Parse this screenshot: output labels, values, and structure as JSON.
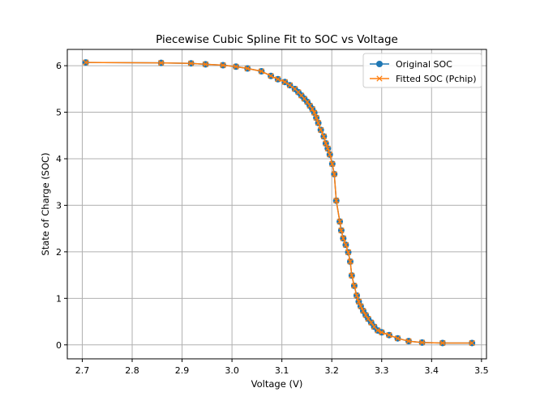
{
  "chart_data": {
    "type": "line",
    "title": "Piecewise Cubic Spline Fit to SOC vs Voltage",
    "xlabel": "Voltage (V)",
    "ylabel": "State of Charge (SOC)",
    "xlim": [
      2.67,
      3.51
    ],
    "ylim": [
      -0.3,
      6.35
    ],
    "xticks": [
      2.7,
      2.8,
      2.9,
      3.0,
      3.1,
      3.2,
      3.3,
      3.4,
      3.5
    ],
    "xtick_labels": [
      "2.7",
      "2.8",
      "2.9",
      "3.0",
      "3.1",
      "3.2",
      "3.3",
      "3.4",
      "3.5"
    ],
    "yticks": [
      0,
      1,
      2,
      3,
      4,
      5,
      6
    ],
    "ytick_labels": [
      "0",
      "1",
      "2",
      "3",
      "4",
      "5",
      "6"
    ],
    "grid": true,
    "legend_position": "top-right",
    "series": [
      {
        "name": "Original SOC",
        "color": "#1f77b4",
        "marker": "circle",
        "x": [
          2.707,
          2.858,
          2.918,
          2.947,
          2.982,
          3.008,
          3.031,
          3.059,
          3.078,
          3.092,
          3.106,
          3.116,
          3.126,
          3.133,
          3.139,
          3.145,
          3.151,
          3.156,
          3.161,
          3.165,
          3.169,
          3.173,
          3.178,
          3.184,
          3.188,
          3.192,
          3.196,
          3.201,
          3.205,
          3.209,
          3.216,
          3.219,
          3.223,
          3.228,
          3.233,
          3.237,
          3.24,
          3.245,
          3.25,
          3.254,
          3.258,
          3.263,
          3.268,
          3.273,
          3.279,
          3.285,
          3.292,
          3.3,
          3.315,
          3.332,
          3.354,
          3.381,
          3.422,
          3.481
        ],
        "y": [
          6.07,
          6.06,
          6.05,
          6.03,
          6.01,
          5.98,
          5.94,
          5.88,
          5.78,
          5.71,
          5.65,
          5.58,
          5.5,
          5.43,
          5.36,
          5.29,
          5.22,
          5.14,
          5.07,
          4.99,
          4.88,
          4.77,
          4.62,
          4.48,
          4.33,
          4.22,
          4.09,
          3.89,
          3.67,
          3.1,
          2.65,
          2.46,
          2.29,
          2.15,
          1.99,
          1.79,
          1.49,
          1.27,
          1.06,
          0.93,
          0.83,
          0.73,
          0.64,
          0.56,
          0.48,
          0.39,
          0.31,
          0.27,
          0.21,
          0.14,
          0.08,
          0.05,
          0.04,
          0.04
        ]
      },
      {
        "name": "Fitted SOC (Pchip)",
        "color": "#ff7f0e",
        "marker": "x",
        "x": [
          2.707,
          2.858,
          2.918,
          2.947,
          2.982,
          3.008,
          3.031,
          3.059,
          3.078,
          3.092,
          3.106,
          3.116,
          3.126,
          3.133,
          3.139,
          3.145,
          3.151,
          3.156,
          3.161,
          3.165,
          3.169,
          3.173,
          3.178,
          3.184,
          3.188,
          3.192,
          3.196,
          3.201,
          3.205,
          3.209,
          3.216,
          3.219,
          3.223,
          3.228,
          3.233,
          3.237,
          3.24,
          3.245,
          3.25,
          3.254,
          3.258,
          3.263,
          3.268,
          3.273,
          3.279,
          3.285,
          3.292,
          3.3,
          3.315,
          3.332,
          3.354,
          3.381,
          3.422,
          3.481
        ],
        "y": [
          6.07,
          6.06,
          6.05,
          6.03,
          6.01,
          5.98,
          5.94,
          5.88,
          5.78,
          5.71,
          5.65,
          5.58,
          5.5,
          5.43,
          5.36,
          5.29,
          5.22,
          5.14,
          5.07,
          4.99,
          4.88,
          4.77,
          4.62,
          4.48,
          4.33,
          4.22,
          4.09,
          3.89,
          3.67,
          3.1,
          2.65,
          2.46,
          2.29,
          2.15,
          1.99,
          1.79,
          1.49,
          1.27,
          1.06,
          0.93,
          0.83,
          0.73,
          0.64,
          0.56,
          0.48,
          0.39,
          0.31,
          0.27,
          0.21,
          0.14,
          0.08,
          0.05,
          0.04,
          0.04
        ]
      }
    ]
  }
}
